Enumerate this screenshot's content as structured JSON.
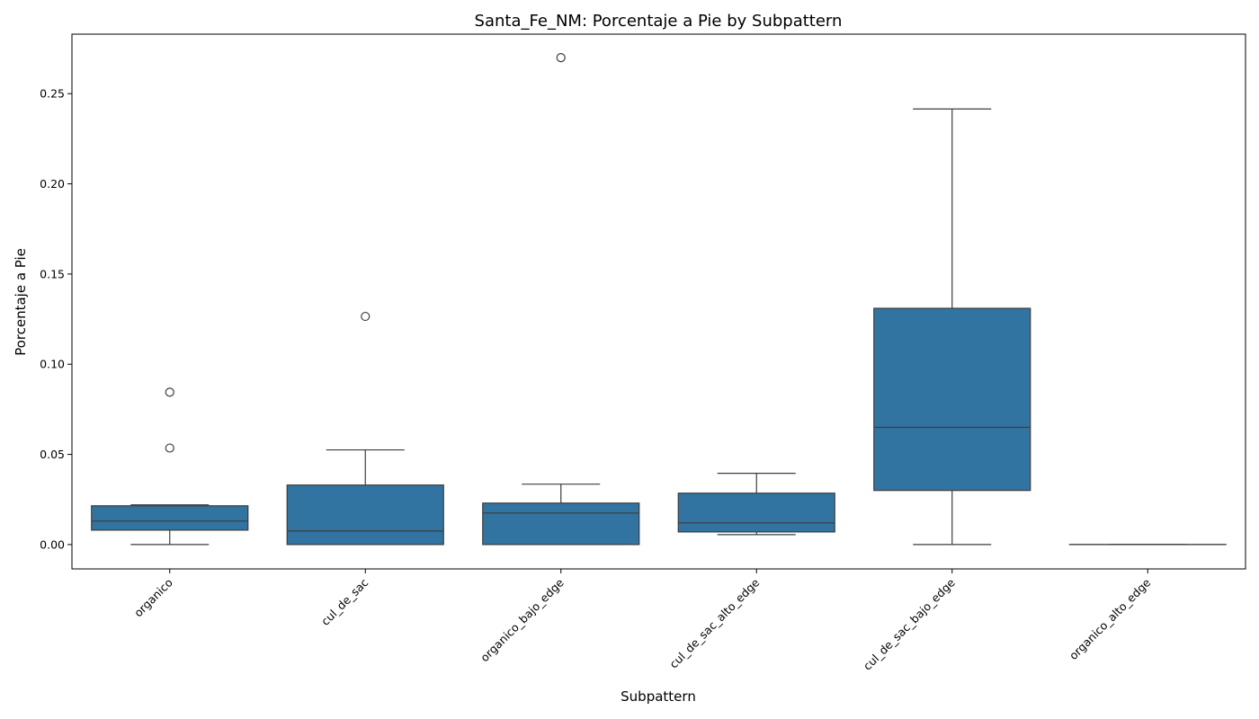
{
  "chart_data": {
    "type": "box",
    "title": "Santa_Fe_NM: Porcentaje a Pie by Subpattern",
    "xlabel": "Subpattern",
    "ylabel": "Porcentaje a Pie",
    "ylim": [
      -0.0135,
      0.283
    ],
    "yticks": [
      0.0,
      0.05,
      0.1,
      0.15,
      0.2,
      0.25
    ],
    "ytick_labels": [
      "0.00",
      "0.05",
      "0.10",
      "0.15",
      "0.20",
      "0.25"
    ],
    "grid": false,
    "box_color": "#3274a1",
    "line_color": "#3d3d3d",
    "categories": [
      "organico",
      "cul_de_sac",
      "organico_bajo_edge",
      "cul_de_sac_alto_edge",
      "cul_de_sac_bajo_edge",
      "organico_alto_edge"
    ],
    "boxes": [
      {
        "category": "organico",
        "whisker_low": 0.0,
        "q1": 0.008,
        "median": 0.013,
        "q3": 0.0215,
        "whisker_high": 0.022,
        "outliers": [
          0.0535,
          0.0845
        ]
      },
      {
        "category": "cul_de_sac",
        "whisker_low": 0.0,
        "q1": 0.0,
        "median": 0.0075,
        "q3": 0.033,
        "whisker_high": 0.0525,
        "outliers": [
          0.1265
        ]
      },
      {
        "category": "organico_bajo_edge",
        "whisker_low": 0.0,
        "q1": 0.0,
        "median": 0.0175,
        "q3": 0.023,
        "whisker_high": 0.0335,
        "outliers": [
          0.27
        ]
      },
      {
        "category": "cul_de_sac_alto_edge",
        "whisker_low": 0.0055,
        "q1": 0.007,
        "median": 0.012,
        "q3": 0.0285,
        "whisker_high": 0.0395,
        "outliers": []
      },
      {
        "category": "cul_de_sac_bajo_edge",
        "whisker_low": 0.0,
        "q1": 0.03,
        "median": 0.065,
        "q3": 0.131,
        "whisker_high": 0.2415,
        "outliers": []
      },
      {
        "category": "organico_alto_edge",
        "whisker_low": 0.0,
        "q1": 0.0,
        "median": 0.0,
        "q3": 0.0,
        "whisker_high": 0.0,
        "outliers": []
      }
    ]
  }
}
